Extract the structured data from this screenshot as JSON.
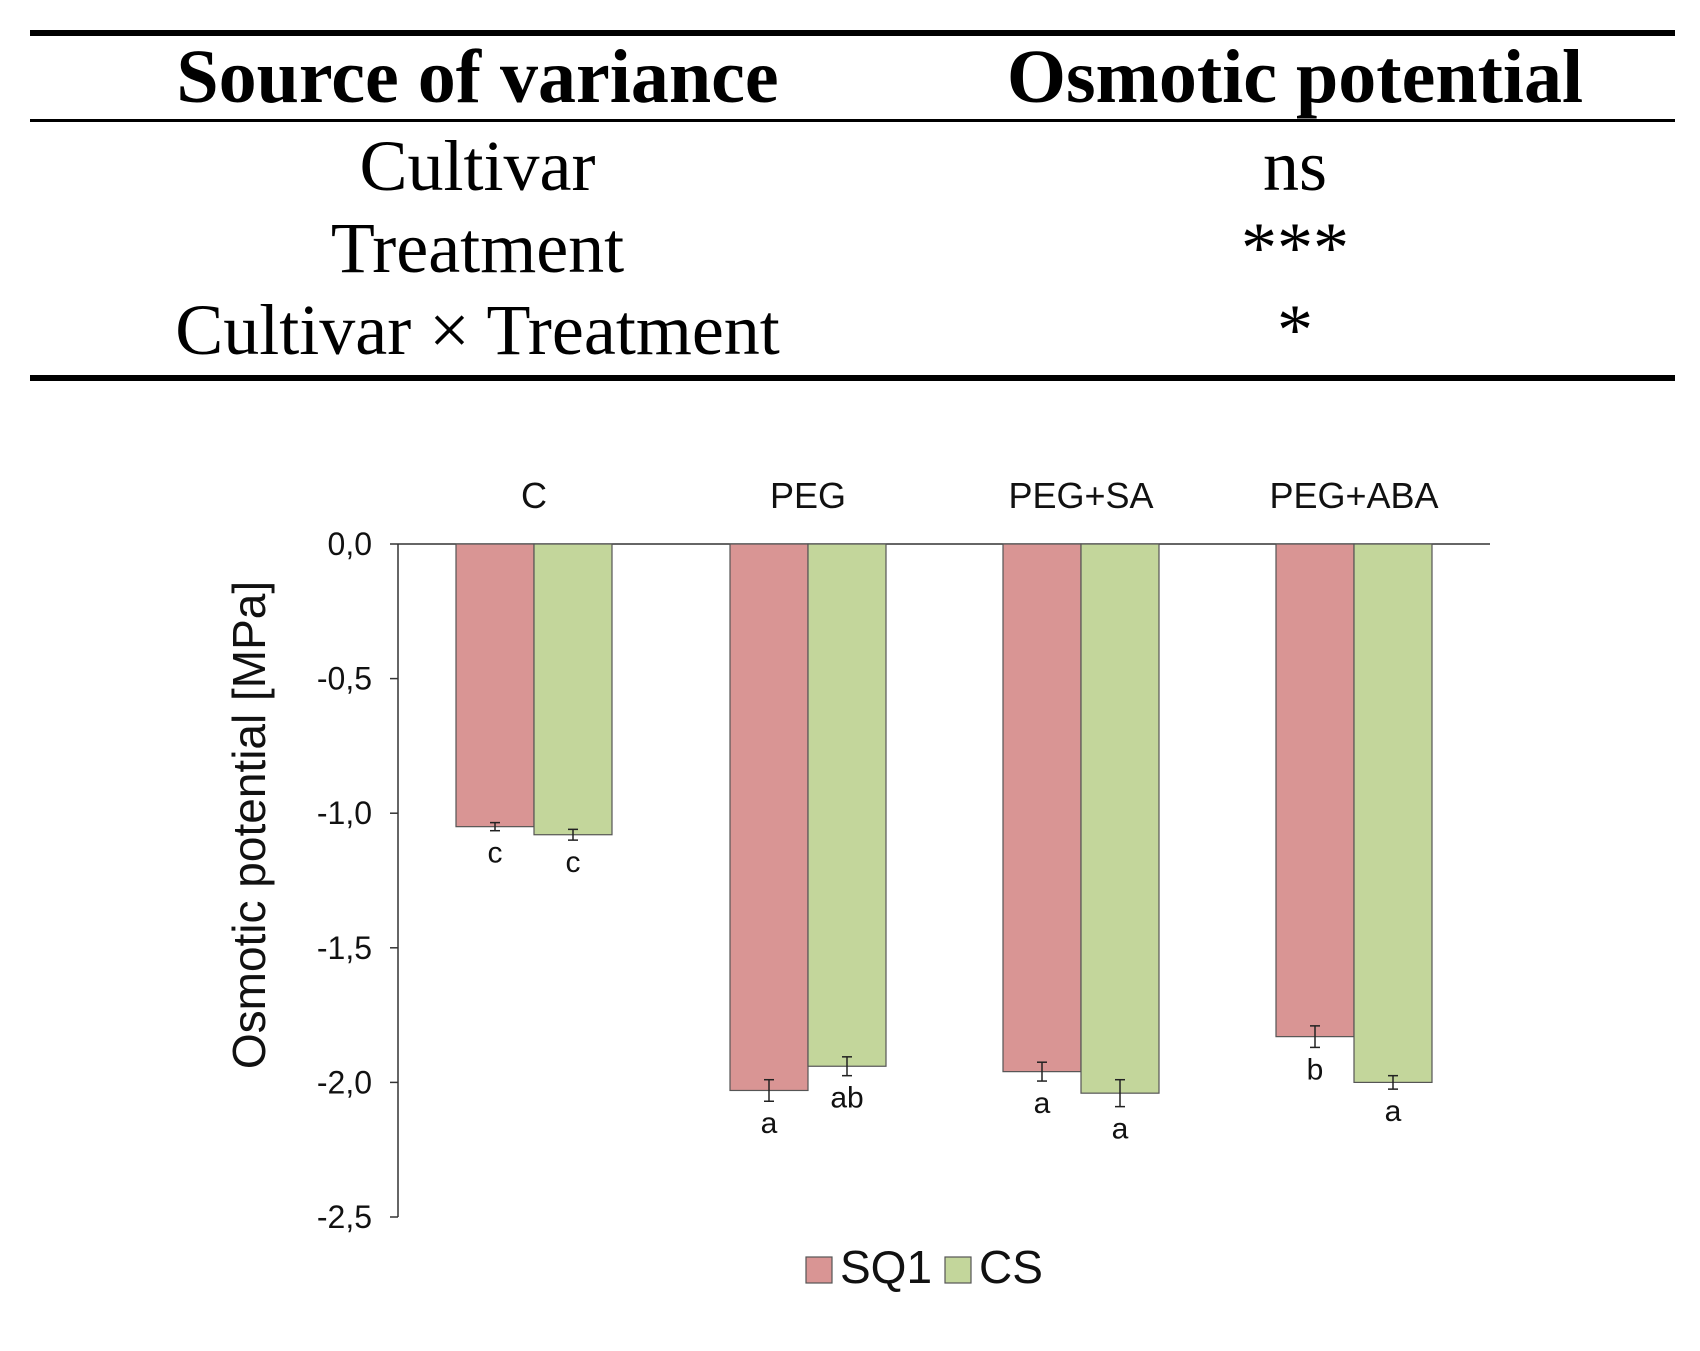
{
  "table": {
    "headers": [
      "Source of variance",
      "Osmotic potential"
    ],
    "rows": [
      {
        "source": "Cultivar",
        "value": "ns"
      },
      {
        "source": "Treatment",
        "value": "***"
      },
      {
        "source": "Cultivar × Treatment",
        "value": "*"
      }
    ]
  },
  "colors": {
    "SQ1": "#d99594",
    "CS": "#c3d69b",
    "outline": "#555555"
  },
  "chart_data": {
    "type": "bar",
    "title": "",
    "xlabel": "",
    "ylabel": "Osmotic potential [MPa]",
    "ylim": [
      -2.5,
      0.0
    ],
    "yticks": [
      0.0,
      -0.5,
      -1.0,
      -1.5,
      -2.0,
      -2.5
    ],
    "ytick_labels": [
      "0,0",
      "-0,5",
      "-1,0",
      "-1,5",
      "-2,0",
      "-2,5"
    ],
    "categories": [
      "C",
      "PEG",
      "PEG+SA",
      "PEG+ABA"
    ],
    "category_position": "top",
    "grid": false,
    "legend_position": "bottom-center",
    "series": [
      {
        "name": "SQ1",
        "values": [
          -1.05,
          -2.03,
          -1.96,
          -1.83
        ],
        "errors": [
          0.015,
          0.04,
          0.035,
          0.04
        ],
        "labels": [
          "c",
          "a",
          "a",
          "b"
        ]
      },
      {
        "name": "CS",
        "values": [
          -1.08,
          -1.94,
          -2.04,
          -2.0
        ],
        "errors": [
          0.02,
          0.035,
          0.05,
          0.025
        ],
        "labels": [
          "c",
          "ab",
          "a",
          "a"
        ]
      }
    ]
  }
}
